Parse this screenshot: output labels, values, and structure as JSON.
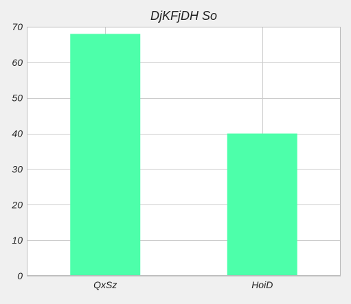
{
  "chart_data": {
    "type": "bar",
    "title": "DjKFjDH So",
    "categories": [
      "QxSz",
      "HoiD"
    ],
    "values": [
      68,
      40
    ],
    "ylim": [
      0,
      70
    ],
    "yticks": [
      0,
      10,
      20,
      30,
      40,
      50,
      60,
      70
    ],
    "grid": true,
    "colors": {
      "bar": "#4dffaa",
      "figure_background": "#f0f0f0",
      "plot_background": "#ffffff",
      "grid": "#cccccc"
    }
  }
}
